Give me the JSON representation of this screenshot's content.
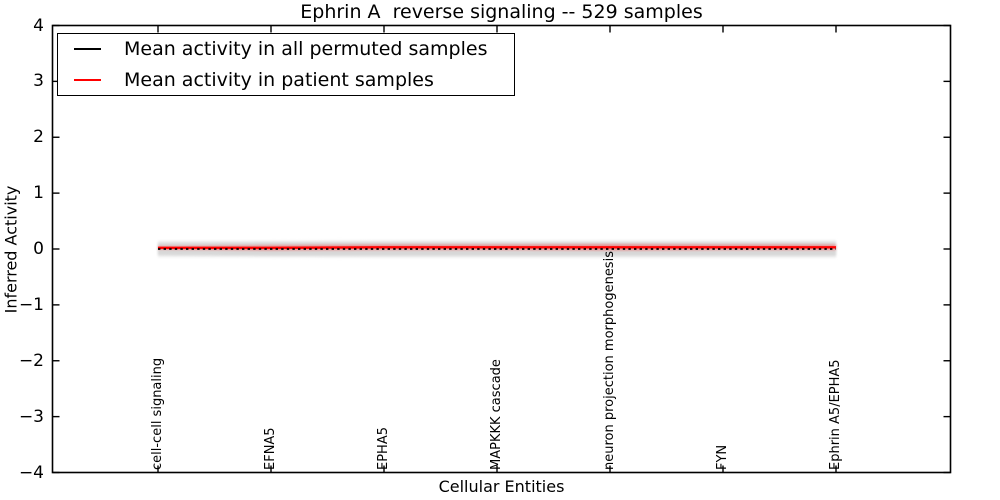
{
  "figure": {
    "background": "#ffffff"
  },
  "chart_data": {
    "type": "line",
    "title": "Ephrin A  reverse signaling -- 529 samples",
    "xlabel": "Cellular Entities",
    "ylabel": "Inferred Activity",
    "ylim": [
      -4,
      4
    ],
    "yticks": [
      4,
      3,
      2,
      1,
      0,
      -1,
      -2,
      -3,
      -4
    ],
    "grid": false,
    "legend_position": "upper left",
    "categories": [
      "cell-cell signaling",
      "EFNA5",
      "EPHA5",
      "MAPKKK cascade",
      "neuron projection morphogenesis",
      "FYN",
      "Ephrin A5/EPHA5"
    ],
    "series": [
      {
        "name": "Mean activity in all permuted samples",
        "color": "#000000",
        "linestyle": "dotted",
        "values": [
          0,
          0,
          0,
          0,
          0,
          0,
          0
        ]
      },
      {
        "name": "Mean activity in patient samples",
        "color": "#ff0000",
        "linestyle": "solid",
        "values": [
          0.02,
          0.02,
          0.03,
          0.03,
          0.03,
          0.03,
          0.03
        ]
      }
    ],
    "bands": [
      {
        "name": "permuted-samples-outer-spread",
        "color": "#f0f0f0",
        "center": [
          0,
          0,
          0,
          0,
          0,
          0,
          0
        ],
        "halfwidth": [
          0.15,
          0.15,
          0.16,
          0.16,
          0.16,
          0.16,
          0.16
        ]
      },
      {
        "name": "permuted-samples-spread",
        "color": "#d8d8d8",
        "center": [
          0,
          0,
          0,
          0,
          0,
          0,
          0
        ],
        "halfwidth": [
          0.11,
          0.12,
          0.12,
          0.12,
          0.12,
          0.12,
          0.12
        ]
      },
      {
        "name": "patient-samples-spread",
        "color": "rgba(255,0,0,0.30)",
        "center": [
          0.02,
          0.02,
          0.03,
          0.03,
          0.03,
          0.03,
          0.03
        ],
        "halfwidth": [
          0.03,
          0.05,
          0.05,
          0.05,
          0.06,
          0.05,
          0.05
        ]
      }
    ]
  }
}
